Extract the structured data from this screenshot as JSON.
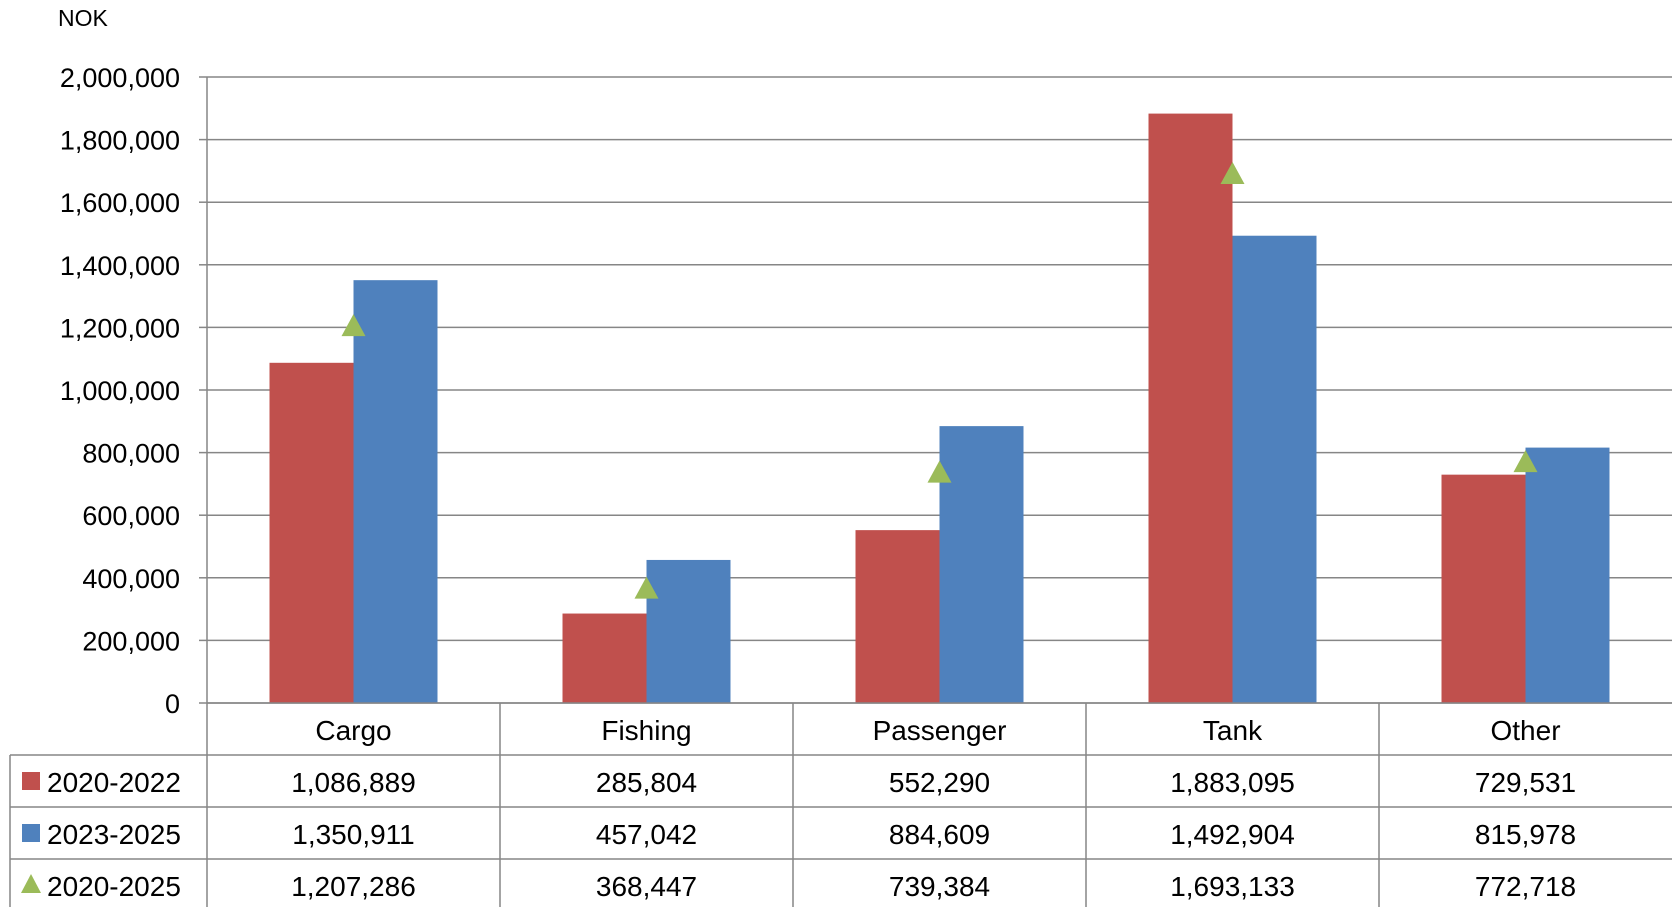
{
  "chart_data": {
    "type": "bar",
    "ylabel": "NOK",
    "ylim": [
      0,
      2000000
    ],
    "yticks": [
      0,
      200000,
      400000,
      600000,
      800000,
      1000000,
      1200000,
      1400000,
      1600000,
      1800000,
      2000000
    ],
    "ytick_labels": [
      "0",
      "200,000",
      "400,000",
      "600,000",
      "800,000",
      "1,000,000",
      "1,200,000",
      "1,400,000",
      "1,600,000",
      "1,800,000",
      "2,000,000"
    ],
    "grid": true,
    "legend": "data-table",
    "categories": [
      "Cargo",
      "Fishing",
      "Passenger",
      "Tank",
      "Other"
    ],
    "series": [
      {
        "name": "2020-2022",
        "kind": "bar",
        "color": "#C0504D",
        "values": [
          1086889,
          285804,
          552290,
          1883095,
          729531
        ],
        "labels": [
          "1,086,889",
          "285,804",
          "552,290",
          "1,883,095",
          "729,531"
        ]
      },
      {
        "name": "2023-2025",
        "kind": "bar",
        "color": "#4F81BD",
        "values": [
          1350911,
          457042,
          884609,
          1492904,
          815978
        ],
        "labels": [
          "1,350,911",
          "457,042",
          "884,609",
          "1,492,904",
          "815,978"
        ]
      },
      {
        "name": "2020-2025",
        "kind": "marker",
        "marker": "triangle",
        "color": "#9BBB59",
        "values": [
          1207286,
          368447,
          739384,
          1693133,
          772718
        ],
        "labels": [
          "1,207,286",
          "368,447",
          "739,384",
          "1,693,133",
          "772,718"
        ]
      }
    ]
  }
}
